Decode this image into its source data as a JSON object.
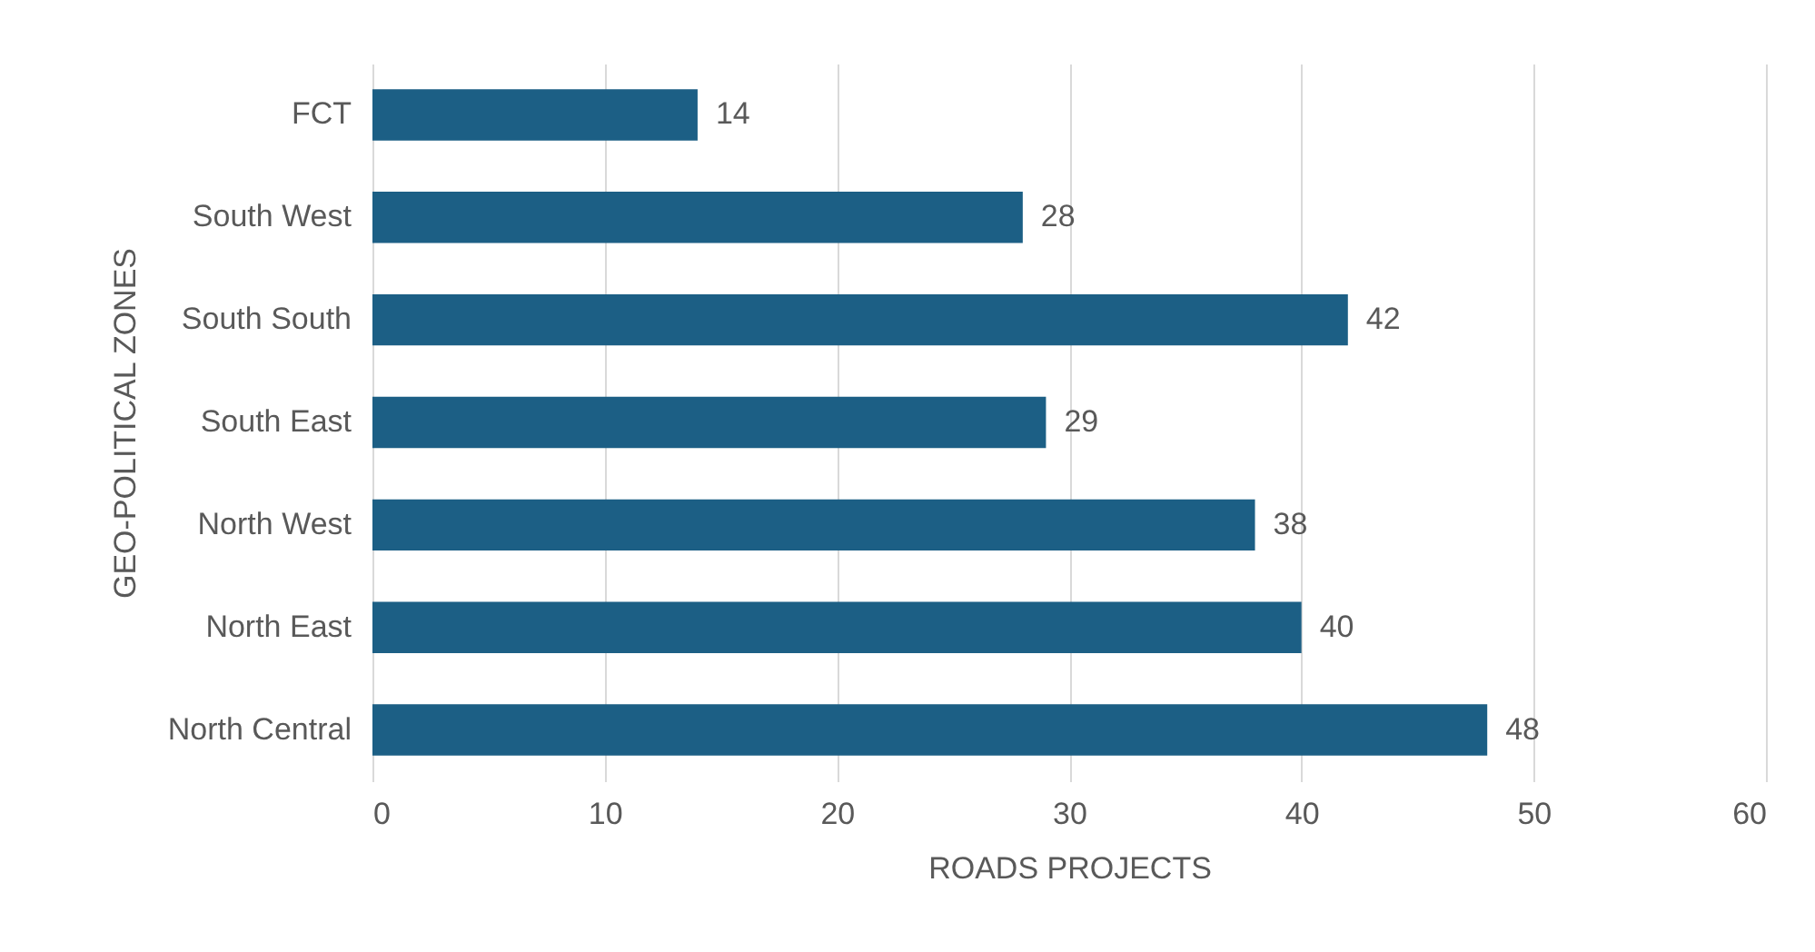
{
  "chart_data": {
    "type": "bar",
    "orientation": "horizontal",
    "xlabel": "ROADS PROJECTS",
    "ylabel": "GEO-POLITICAL ZONES",
    "categories": [
      "FCT",
      "South West",
      "South South",
      "South East",
      "North West",
      "North East",
      "North Central"
    ],
    "values": [
      14,
      28,
      42,
      29,
      38,
      40,
      48
    ],
    "color": "#1c5f85",
    "xlim": [
      0,
      60
    ],
    "xticks": [
      0,
      10,
      20,
      30,
      40,
      50,
      60
    ],
    "grid": "x",
    "data_labels": true
  }
}
